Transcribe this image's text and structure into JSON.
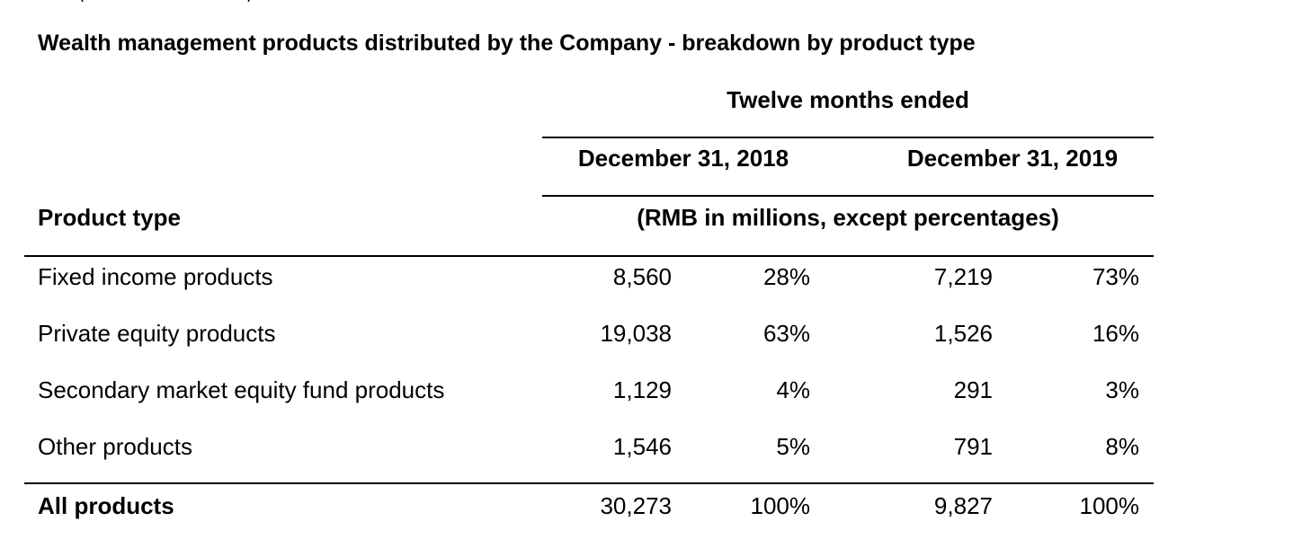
{
  "title": "Wealth management products distributed by the Company - breakdown by product type",
  "header": {
    "period_group": "Twelve months ended",
    "period_2018": "December 31, 2018",
    "period_2019": "December 31, 2019",
    "units": "(RMB in millions, except percentages)",
    "row_label": "Product type"
  },
  "rows": [
    {
      "label": "Fixed income products",
      "amount_2018": "8,560",
      "pct_2018": "28%",
      "amount_2019": "7,219",
      "pct_2019": "73%"
    },
    {
      "label": "Private equity products",
      "amount_2018": "19,038",
      "pct_2018": "63%",
      "amount_2019": "1,526",
      "pct_2019": "16%"
    },
    {
      "label": "Secondary market equity fund products",
      "amount_2018": "1,129",
      "pct_2018": "4%",
      "amount_2019": "291",
      "pct_2019": "3%"
    },
    {
      "label": "Other products",
      "amount_2018": "1,546",
      "pct_2018": "5%",
      "amount_2019": "791",
      "pct_2019": "8%"
    }
  ],
  "total": {
    "label": "All products",
    "amount_2018": "30,273",
    "pct_2018": "100%",
    "amount_2019": "9,827",
    "pct_2019": "100%"
  }
}
